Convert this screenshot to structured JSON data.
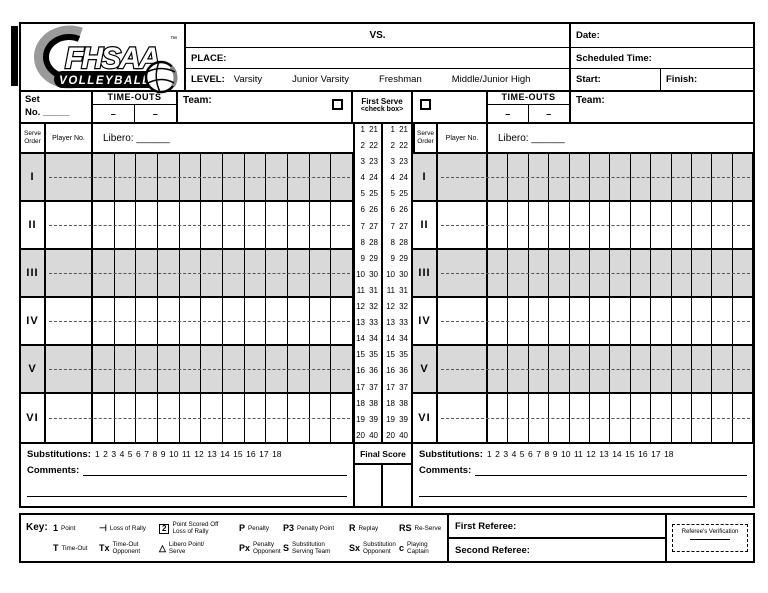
{
  "logo": {
    "brand": "FHSAA",
    "tm": "™",
    "sub": "VOLLEYBALL"
  },
  "header": {
    "vs": "VS.",
    "place": "PLACE:",
    "level": "LEVEL:",
    "level_options": [
      "Varsity",
      "Junior Varsity",
      "Freshman",
      "Middle/Junior High"
    ],
    "date": "Date:",
    "scheduled_time": "Scheduled Time:",
    "start": "Start:",
    "finish": "Finish:"
  },
  "team_header": {
    "set_line1": "Set",
    "set_line2": "No. _____",
    "timeouts": "TIME-OUTS",
    "dash": "–",
    "team": "Team:",
    "first_serve_line1": "First Serve",
    "first_serve_line2": "<check box>"
  },
  "columns": {
    "serve_order_line1": "Serve",
    "serve_order_line2": "Order",
    "player_no": "Player No.",
    "libero": "Libero: ______"
  },
  "serve_rows": [
    "I",
    "II",
    "III",
    "IV",
    "V",
    "VI"
  ],
  "score_strip": {
    "pairs": [
      {
        "a": "1",
        "b": "21"
      },
      {
        "a": "2",
        "b": "22"
      },
      {
        "a": "3",
        "b": "23"
      },
      {
        "a": "4",
        "b": "24"
      },
      {
        "a": "5",
        "b": "25"
      },
      {
        "a": "6",
        "b": "26"
      },
      {
        "a": "7",
        "b": "27"
      },
      {
        "a": "8",
        "b": "28"
      },
      {
        "a": "9",
        "b": "29"
      },
      {
        "a": "10",
        "b": "30"
      },
      {
        "a": "11",
        "b": "31"
      },
      {
        "a": "12",
        "b": "32"
      },
      {
        "a": "13",
        "b": "33"
      },
      {
        "a": "14",
        "b": "34"
      },
      {
        "a": "15",
        "b": "35"
      },
      {
        "a": "16",
        "b": "36"
      },
      {
        "a": "17",
        "b": "37"
      },
      {
        "a": "18",
        "b": "38"
      },
      {
        "a": "19",
        "b": "39"
      },
      {
        "a": "20",
        "b": "40"
      }
    ]
  },
  "final_score": "Final Score",
  "substitutions": {
    "label": "Substitutions:",
    "numbers": [
      "1",
      "2",
      "3",
      "4",
      "5",
      "6",
      "7",
      "8",
      "9",
      "10",
      "11",
      "12",
      "13",
      "14",
      "15",
      "16",
      "17",
      "18"
    ]
  },
  "comments": {
    "label": "Comments:"
  },
  "key": {
    "label": "Key:",
    "rows": [
      [
        {
          "sym": "1",
          "label": "Point"
        },
        {
          "sym": "⊣",
          "label": "Loss of Rally"
        },
        {
          "sym": "2",
          "label": "Point Scored Off\nLoss of Rally",
          "boxed": true
        },
        {
          "sym": "P",
          "label": "Penalty"
        },
        {
          "sym": "P3",
          "label": "Penalty Point"
        },
        {
          "sym": "R",
          "label": "Replay"
        },
        {
          "sym": "RS",
          "label": "Re-Serve"
        }
      ],
      [
        {
          "sym": "T",
          "label": "Time-Out"
        },
        {
          "sym": "Tx",
          "label": "Time-Out\nOpponent"
        },
        {
          "sym": "△",
          "label": "Libero Point/\nServe"
        },
        {
          "sym": "Px",
          "label": "Penalty\nOpponent"
        },
        {
          "sym": "S",
          "label": "Substitution\nServing Team"
        },
        {
          "sym": "Sx",
          "label": "Substitution\nOpponent"
        },
        {
          "sym": "c",
          "label": "Playing\nCaptain"
        }
      ]
    ]
  },
  "referees": {
    "first": "First Referee:",
    "second": "Second Referee:",
    "verification": "Referee's Verification"
  }
}
